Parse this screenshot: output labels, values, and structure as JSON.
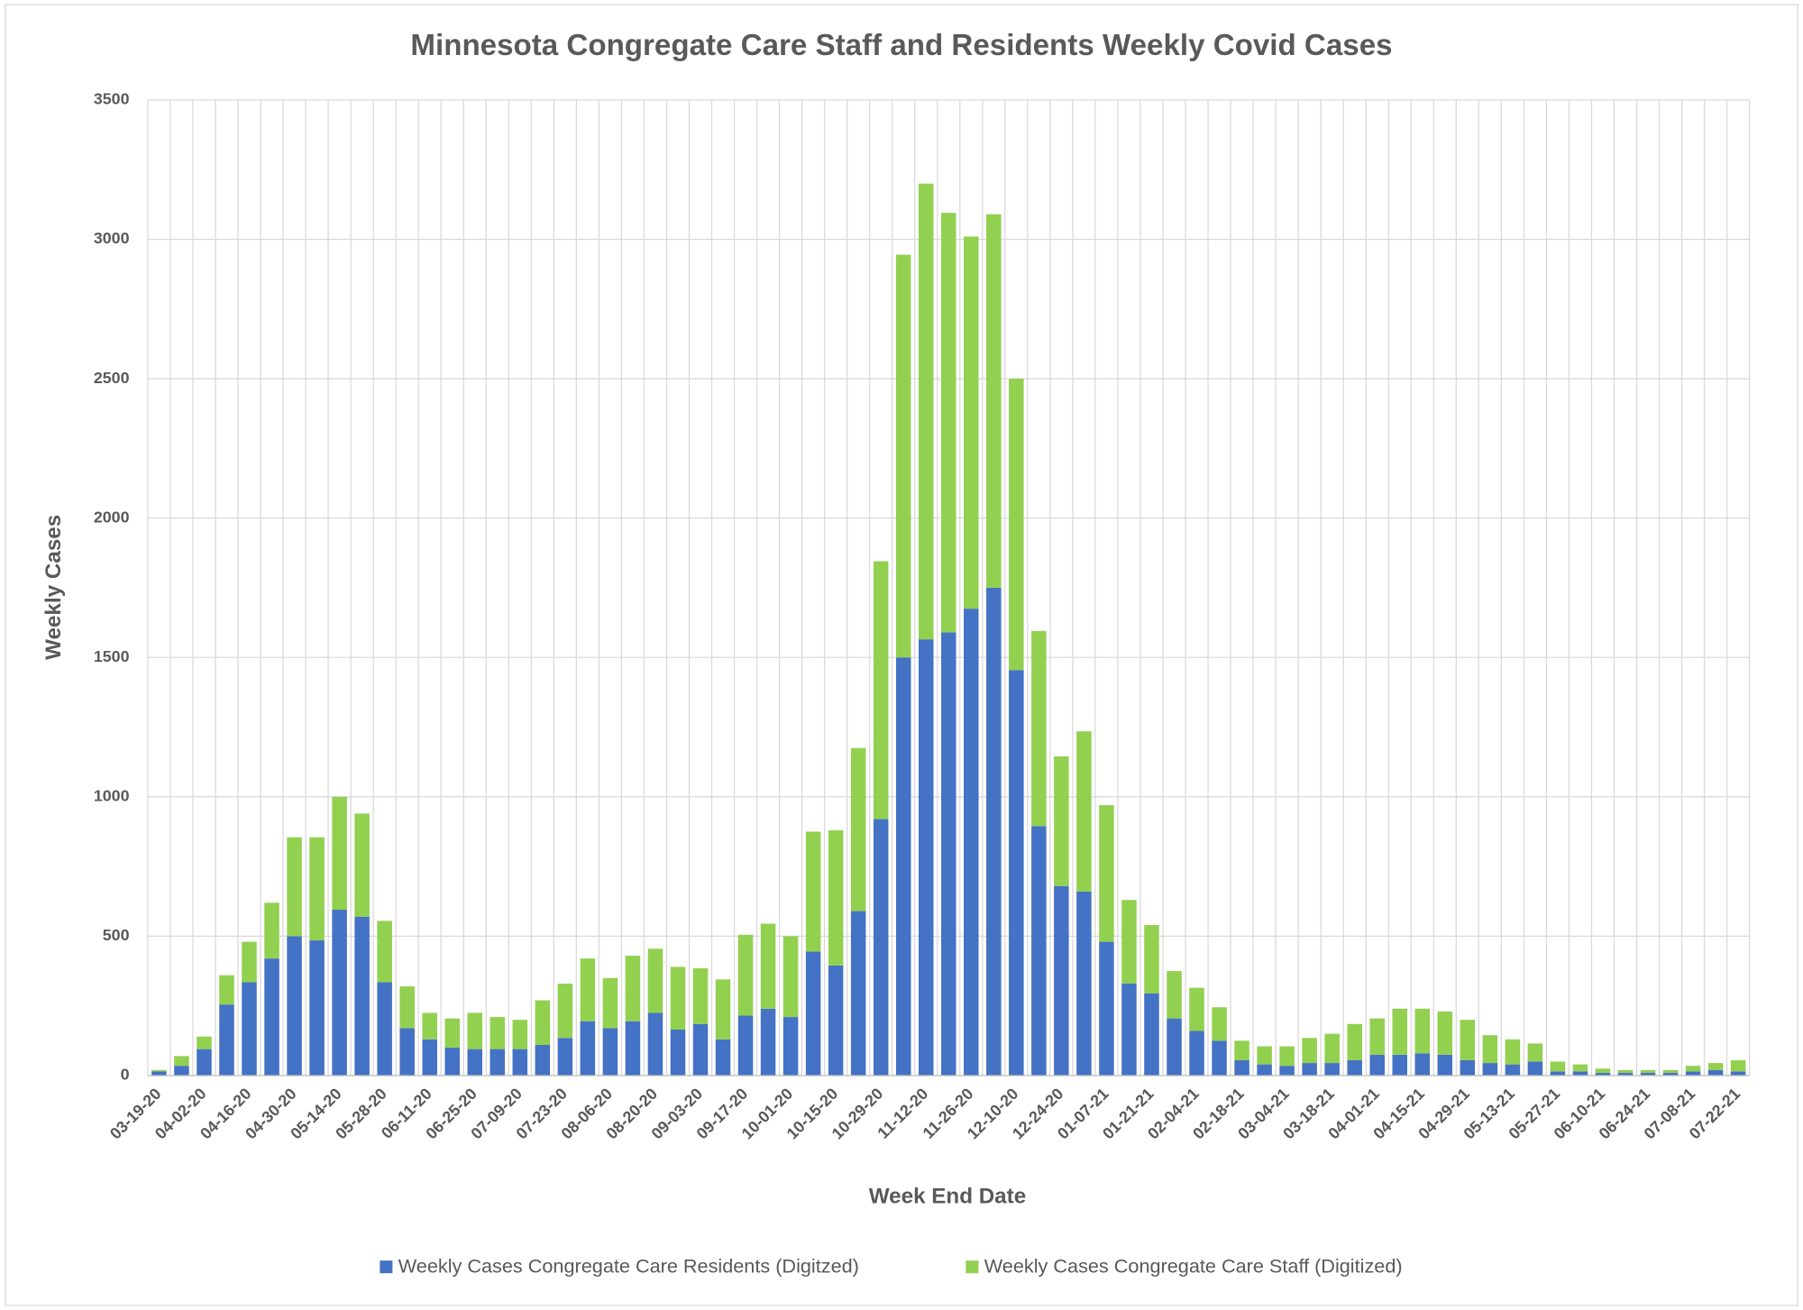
{
  "chart_data": {
    "type": "stacked_bar",
    "title": "Minnesota Congregate Care Staff and Residents Weekly Covid Cases",
    "x_label": "Week End Date",
    "y_label": "Weekly Cases",
    "categories": [
      "03-19-20",
      null,
      "04-02-20",
      null,
      "04-16-20",
      null,
      "04-30-20",
      null,
      "05-14-20",
      null,
      "05-28-20",
      null,
      "06-11-20",
      null,
      "06-25-20",
      null,
      "07-09-20",
      null,
      "07-23-20",
      null,
      "08-06-20",
      null,
      "08-20-20",
      null,
      "09-03-20",
      null,
      "09-17-20",
      null,
      "10-01-20",
      null,
      "10-15-20",
      null,
      "10-29-20",
      null,
      "11-12-20",
      null,
      "11-26-20",
      null,
      "12-10-20",
      null,
      "12-24-20",
      null,
      "01-07-21",
      null,
      "01-21-21",
      null,
      "02-04-21",
      null,
      "02-18-21",
      null,
      "03-04-21",
      null,
      "03-18-21",
      null,
      "04-01-21",
      null,
      "04-15-21",
      null,
      "04-29-21",
      null,
      "05-13-21",
      null,
      "05-27-21",
      null,
      "06-10-21",
      null,
      "06-24-21",
      null,
      "07-08-21",
      null,
      "07-22-21"
    ],
    "series": [
      {
        "name": "Weekly Cases Congregate Care Residents (Digitzed)",
        "color": "#4472c4",
        "values": [
          15,
          35,
          95,
          255,
          335,
          420,
          500,
          485,
          595,
          570,
          335,
          170,
          130,
          100,
          95,
          95,
          95,
          110,
          135,
          195,
          170,
          195,
          225,
          165,
          185,
          130,
          215,
          240,
          210,
          445,
          395,
          590,
          920,
          1500,
          1565,
          1590,
          1675,
          1750,
          1455,
          895,
          680,
          660,
          480,
          330,
          295,
          205,
          160,
          125,
          55,
          40,
          35,
          45,
          45,
          55,
          75,
          75,
          80,
          75,
          55,
          45,
          40,
          50,
          15,
          15,
          10,
          10,
          10,
          10,
          15,
          20,
          15
        ]
      },
      {
        "name": "Weekly Cases Congregate Care Staff (Digitized)",
        "color": "#92d050",
        "values": [
          5,
          35,
          45,
          105,
          145,
          200,
          355,
          370,
          405,
          370,
          220,
          150,
          95,
          105,
          130,
          115,
          105,
          160,
          195,
          225,
          180,
          235,
          230,
          225,
          200,
          215,
          290,
          305,
          290,
          430,
          485,
          585,
          925,
          1445,
          1635,
          1505,
          1335,
          1340,
          1045,
          700,
          465,
          575,
          490,
          300,
          245,
          170,
          155,
          120,
          70,
          65,
          70,
          90,
          105,
          130,
          130,
          165,
          160,
          155,
          145,
          100,
          90,
          65,
          35,
          25,
          15,
          10,
          10,
          10,
          20,
          25,
          40
        ]
      }
    ],
    "ylim": [
      0,
      3500
    ],
    "yticks": [
      0,
      500,
      1000,
      1500,
      2000,
      2500,
      3000,
      3500
    ],
    "grid": true,
    "legend": "bottom"
  }
}
